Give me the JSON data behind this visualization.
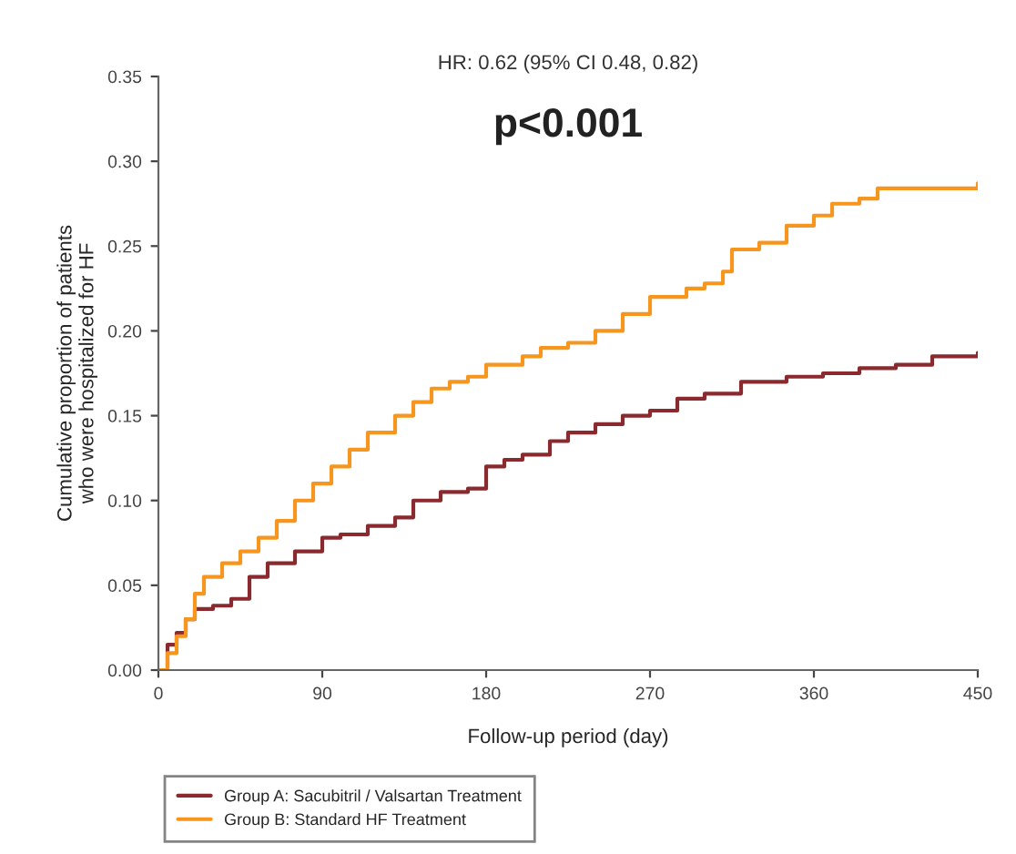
{
  "chart_data": {
    "type": "step",
    "title": "HR: 0.62 (95% CI 0.48, 0.82)",
    "subtitle": "p<0.001",
    "xlabel": "Follow-up period (day)",
    "ylabel": "Cumulative proportion of patients\nwho were hospitalized for HF",
    "xlim": [
      0,
      450
    ],
    "xticks": [
      0,
      90,
      180,
      270,
      360,
      450
    ],
    "ylim": [
      0,
      0.35
    ],
    "yticks": [
      {
        "value": 0,
        "label": "0.00"
      },
      {
        "value": 0.05,
        "label": "0.05"
      },
      {
        "value": 0.1,
        "label": "0.10"
      },
      {
        "value": 0.15,
        "label": "0.15"
      },
      {
        "value": 0.2,
        "label": "0.20"
      },
      {
        "value": 0.25,
        "label": "0.25"
      },
      {
        "value": 0.3,
        "label": "0.30"
      },
      {
        "value": 0.35,
        "label": "0.35"
      }
    ],
    "grid": false,
    "legend": "bottom left",
    "series": [
      {
        "name": "Group A: Sacubitril / Valsartan Treatment",
        "color": "#8b2a2e",
        "x": [
          0,
          5,
          10,
          15,
          20,
          30,
          40,
          50,
          60,
          75,
          90,
          100,
          115,
          130,
          140,
          155,
          170,
          180,
          190,
          200,
          215,
          225,
          240,
          255,
          270,
          285,
          300,
          320,
          345,
          365,
          385,
          405,
          425,
          450
        ],
        "values": [
          0,
          0.015,
          0.022,
          0.03,
          0.036,
          0.038,
          0.042,
          0.055,
          0.063,
          0.07,
          0.078,
          0.08,
          0.085,
          0.09,
          0.1,
          0.105,
          0.107,
          0.12,
          0.124,
          0.127,
          0.135,
          0.14,
          0.145,
          0.15,
          0.153,
          0.16,
          0.163,
          0.17,
          0.173,
          0.175,
          0.178,
          0.18,
          0.185,
          0.187
        ]
      },
      {
        "name": "Group B: Standard HF Treatment",
        "color": "#f7961e",
        "x": [
          0,
          5,
          10,
          15,
          20,
          25,
          35,
          45,
          55,
          65,
          75,
          85,
          95,
          105,
          115,
          130,
          140,
          150,
          160,
          170,
          180,
          200,
          210,
          225,
          240,
          255,
          270,
          290,
          300,
          310,
          315,
          330,
          345,
          360,
          370,
          385,
          395,
          420,
          450
        ],
        "values": [
          0,
          0.01,
          0.02,
          0.03,
          0.045,
          0.055,
          0.063,
          0.07,
          0.078,
          0.088,
          0.1,
          0.11,
          0.12,
          0.13,
          0.14,
          0.15,
          0.158,
          0.166,
          0.17,
          0.173,
          0.18,
          0.185,
          0.19,
          0.193,
          0.2,
          0.21,
          0.22,
          0.225,
          0.228,
          0.235,
          0.248,
          0.252,
          0.262,
          0.268,
          0.275,
          0.278,
          0.284,
          0.284,
          0.287
        ]
      }
    ]
  }
}
